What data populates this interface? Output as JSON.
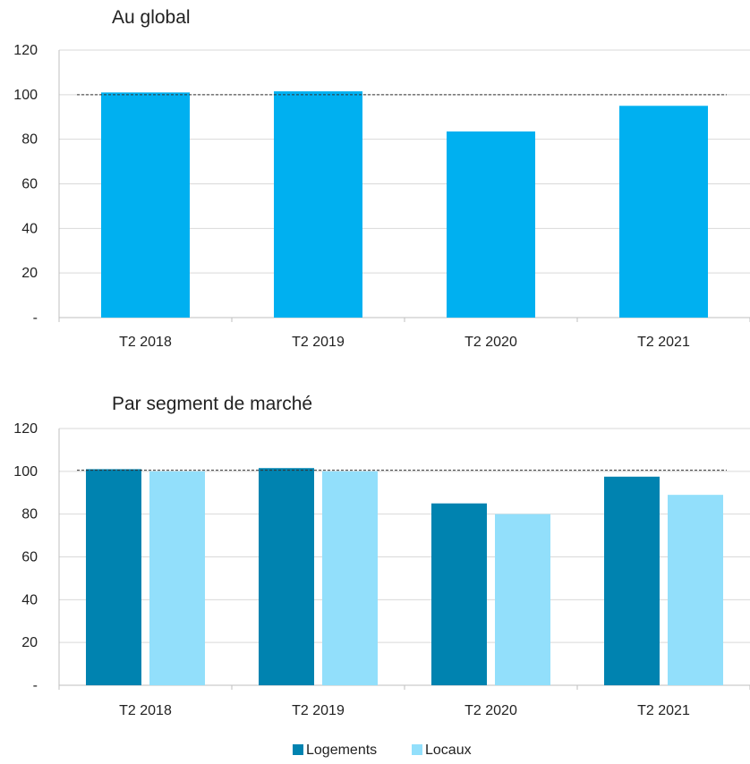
{
  "chart_data": [
    {
      "type": "bar",
      "title": "Au global",
      "categories": [
        "T2 2018",
        "T2 2019",
        "T2 2020",
        "T2 2021"
      ],
      "yticks": [
        "-",
        "20",
        "40",
        "60",
        "80",
        "100",
        "120"
      ],
      "ylim": [
        0,
        120
      ],
      "reference_line": 100,
      "grid": true,
      "series": [
        {
          "values": [
            101,
            101.5,
            83.5,
            95
          ],
          "color": "#00b0f0"
        }
      ]
    },
    {
      "type": "bar",
      "title": "Par segment de marché",
      "categories": [
        "T2 2018",
        "T2 2019",
        "T2 2020",
        "T2 2021"
      ],
      "yticks": [
        "-",
        "20",
        "40",
        "60",
        "80",
        "100",
        "120"
      ],
      "ylim": [
        0,
        120
      ],
      "reference_line": 100.5,
      "grid": true,
      "legend_position": "bottom",
      "series": [
        {
          "name": "Logements",
          "values": [
            101,
            101.5,
            85,
            97.5
          ],
          "color": "#0083b0"
        },
        {
          "name": "Locaux",
          "values": [
            100,
            100,
            80,
            89
          ],
          "color": "#92dffb"
        }
      ]
    }
  ]
}
